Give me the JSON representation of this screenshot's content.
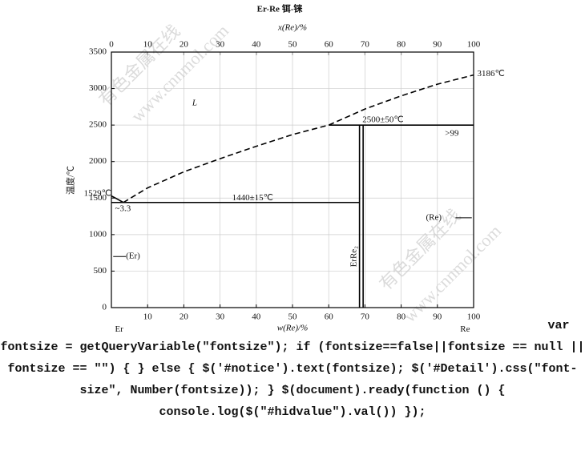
{
  "chart_data": {
    "type": "phase",
    "title": "Er-Re  铒-铼",
    "x_label": "w(Re)/%",
    "x2_label": "x(Re)/%",
    "y_label": "温度/℃",
    "xlim": [
      0,
      100
    ],
    "ylim": [
      0,
      3500
    ],
    "xticks": [
      10,
      20,
      30,
      40,
      50,
      60,
      70,
      80,
      90,
      100
    ],
    "x2ticks": [
      0,
      10,
      20,
      30,
      40,
      50,
      60,
      70,
      80,
      90,
      100
    ],
    "yticks": [
      0,
      500,
      1000,
      1500,
      2000,
      2500,
      3000,
      3500
    ],
    "grid": true,
    "series": [
      {
        "color": "#000000",
        "dash": true,
        "x": [
          3.3,
          10,
          20,
          30,
          40,
          50,
          60,
          70,
          80,
          90,
          100
        ],
        "values": [
          1440,
          1640,
          1860,
          2040,
          2210,
          2370,
          2500,
          2720,
          2900,
          3060,
          3186
        ]
      },
      {
        "color": "#000000",
        "dash": false,
        "x": [
          0,
          1.5,
          3.3
        ],
        "values": [
          1529,
          1490,
          1440
        ]
      },
      {
        "color": "#000000",
        "dash": false,
        "x": [
          0,
          68.5
        ],
        "values": [
          1440,
          1440
        ]
      },
      {
        "color": "#000000",
        "dash": false,
        "x": [
          60,
          100
        ],
        "values": [
          2500,
          2500
        ]
      },
      {
        "color": "#000000",
        "dash": false,
        "x": [
          68.5,
          68.5
        ],
        "values": [
          0,
          2500
        ]
      },
      {
        "color": "#000000",
        "dash": false,
        "x": [
          69.5,
          69.5
        ],
        "values": [
          0,
          2500
        ]
      }
    ],
    "annotations": [
      "L",
      "1529℃",
      "~3.3",
      "1440±15℃",
      "2500±50℃",
      ">99",
      "3186℃",
      "(Er)",
      "(Re)",
      "ErRe₂",
      "Er",
      "Re"
    ]
  },
  "watermarks": [
    "有色金属在线",
    "www.cnnmol.com"
  ],
  "footer_text": "var fontsize = getQueryVariable(\"fontsize\"); if (fontsize==false||fontsize == null || fontsize == \"\") { } else { $('#notice').text(fontsize); $('#Detail').css(\"font-size\", Number(fontsize)); } $(document).ready(function () { console.log($(\"#hidvalue\").val()) });"
}
